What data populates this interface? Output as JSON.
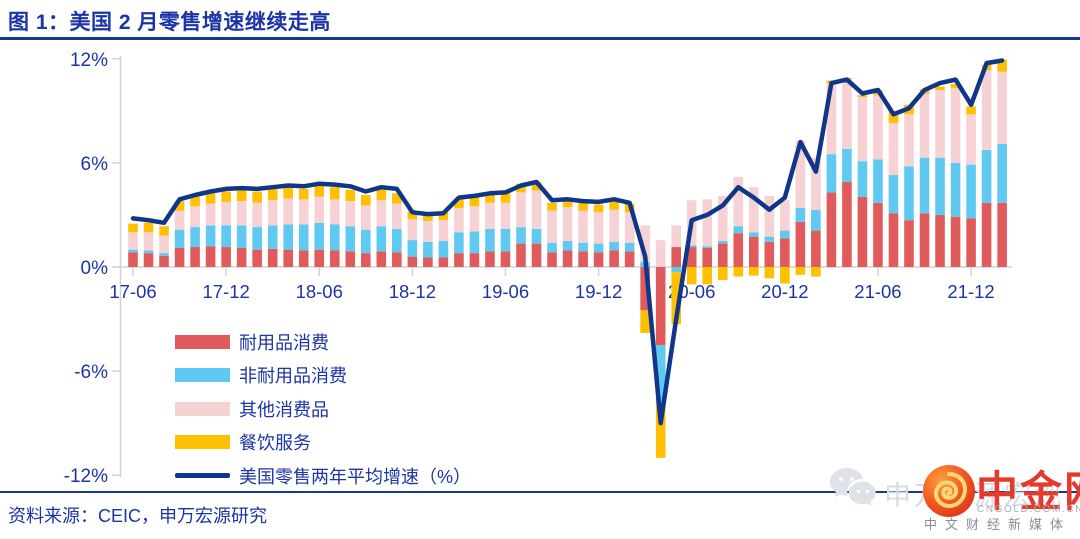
{
  "page": {
    "title": "图 1：美国 2 月零售增速继续走高",
    "source": "资料来源：CEIC，申万宏源研究"
  },
  "colors": {
    "text_blue": "#1b35a6",
    "rule_navy": "#16368f",
    "axis_gray": "#d3d3d3",
    "line_navy": "#0f3688",
    "durable_red": "#e05c5c",
    "nondurable_blue": "#5fc9f2",
    "other_pink": "#f6d2d4",
    "dining_yellow": "#ffc000"
  },
  "watermark": {
    "gray_text": "申万宏源宏观",
    "brand": "中金网",
    "domain": "CNGOLD.COM.CN",
    "tagline": "中文财经新媒体"
  },
  "chart_data": {
    "type": "bar",
    "subtype": "stacked-bar-with-line",
    "title": "美国 2 月零售增速继续走高",
    "xlabel": "",
    "ylabel": "",
    "ylim": [
      -12,
      12
    ],
    "grid": false,
    "legend_position": "inside-lower-left",
    "yticks": [
      "12%",
      "6%",
      "0%",
      "-6%",
      "-12%"
    ],
    "ytick_values": [
      12,
      6,
      0,
      -6,
      -12
    ],
    "xticks": [
      "17-06",
      "17-12",
      "18-06",
      "18-12",
      "19-06",
      "19-12",
      "20-06",
      "20-12",
      "21-06",
      "21-12"
    ],
    "categories": [
      "17-06",
      "17-07",
      "17-08",
      "17-09",
      "17-10",
      "17-11",
      "17-12",
      "18-01",
      "18-02",
      "18-03",
      "18-04",
      "18-05",
      "18-06",
      "18-07",
      "18-08",
      "18-09",
      "18-10",
      "18-11",
      "18-12",
      "19-01",
      "19-02",
      "19-03",
      "19-04",
      "19-05",
      "19-06",
      "19-07",
      "19-08",
      "19-09",
      "19-10",
      "19-11",
      "19-12",
      "20-01",
      "20-02",
      "20-03",
      "20-04",
      "20-05",
      "20-06",
      "20-07",
      "20-08",
      "20-09",
      "20-10",
      "20-11",
      "20-12",
      "21-01",
      "21-02",
      "21-03",
      "21-04",
      "21-05",
      "21-06",
      "21-07",
      "21-08",
      "21-09",
      "21-10",
      "21-11",
      "21-12",
      "22-01",
      "22-02"
    ],
    "series": [
      {
        "name": "耐用品消费",
        "kind": "bar",
        "color": "#e05c5c",
        "values": [
          0.85,
          0.8,
          0.65,
          1.1,
          1.15,
          1.2,
          1.15,
          1.1,
          1.0,
          1.05,
          1.0,
          0.95,
          1.0,
          0.95,
          0.9,
          0.8,
          0.9,
          0.85,
          0.6,
          0.55,
          0.55,
          0.8,
          0.8,
          0.9,
          0.9,
          1.35,
          1.35,
          0.85,
          0.95,
          0.9,
          0.85,
          0.95,
          0.9,
          -2.5,
          -4.5,
          1.15,
          1.15,
          1.1,
          1.35,
          1.95,
          1.75,
          1.45,
          1.65,
          2.6,
          2.1,
          4.3,
          4.9,
          4.05,
          3.7,
          3.1,
          2.7,
          3.1,
          3.0,
          2.9,
          2.8,
          3.7,
          3.7
        ]
      },
      {
        "name": "非耐用品消费",
        "kind": "bar",
        "color": "#5fc9f2",
        "values": [
          0.15,
          0.15,
          0.15,
          1.05,
          1.15,
          1.2,
          1.25,
          1.3,
          1.3,
          1.35,
          1.45,
          1.5,
          1.55,
          1.5,
          1.45,
          1.35,
          1.45,
          1.35,
          0.95,
          0.9,
          0.95,
          1.2,
          1.25,
          1.3,
          1.3,
          0.95,
          0.85,
          0.55,
          0.55,
          0.5,
          0.5,
          0.5,
          0.5,
          0.3,
          -3.4,
          -0.3,
          0.1,
          0.1,
          0.15,
          0.4,
          0.25,
          0.3,
          0.45,
          0.8,
          1.2,
          2.2,
          1.9,
          2.05,
          2.5,
          2.2,
          3.1,
          3.2,
          3.3,
          3.1,
          3.1,
          3.05,
          3.4
        ]
      },
      {
        "name": "其他消费品",
        "kind": "bar",
        "color": "#f6d2d4",
        "values": [
          1.0,
          1.05,
          1.0,
          1.1,
          1.2,
          1.25,
          1.35,
          1.4,
          1.4,
          1.45,
          1.5,
          1.45,
          1.5,
          1.45,
          1.45,
          1.4,
          1.5,
          1.45,
          1.2,
          1.2,
          1.2,
          1.4,
          1.45,
          1.5,
          1.5,
          2.0,
          2.2,
          1.85,
          1.95,
          1.85,
          1.8,
          1.85,
          1.75,
          2.1,
          1.55,
          1.25,
          2.6,
          2.7,
          2.6,
          2.85,
          2.6,
          2.35,
          1.75,
          3.9,
          3.0,
          4.1,
          4.0,
          3.7,
          3.7,
          3.0,
          3.0,
          3.7,
          3.9,
          4.3,
          2.9,
          4.6,
          4.15
        ]
      },
      {
        "name": "餐饮服务",
        "kind": "bar",
        "color": "#ffc000",
        "values": [
          0.5,
          0.55,
          0.55,
          0.55,
          0.55,
          0.6,
          0.6,
          0.65,
          0.65,
          0.65,
          0.65,
          0.6,
          0.65,
          0.7,
          0.65,
          0.6,
          0.65,
          0.6,
          0.45,
          0.45,
          0.45,
          0.55,
          0.55,
          0.6,
          0.6,
          0.5,
          0.5,
          0.45,
          0.45,
          0.45,
          0.45,
          0.5,
          0.5,
          -1.3,
          -3.1,
          -3.0,
          -1.0,
          -1.0,
          -0.75,
          -0.55,
          -0.5,
          -0.65,
          -0.95,
          -0.45,
          -0.55,
          0.15,
          0.1,
          0.1,
          0.3,
          0.7,
          0.55,
          0.25,
          0.2,
          0.25,
          0.45,
          0.3,
          0.7
        ]
      },
      {
        "name": "美国零售两年平均增速（%）",
        "kind": "line",
        "color": "#0f3688",
        "values": [
          2.8,
          2.7,
          2.55,
          3.9,
          4.15,
          4.35,
          4.5,
          4.55,
          4.5,
          4.6,
          4.7,
          4.65,
          4.8,
          4.75,
          4.65,
          4.35,
          4.6,
          4.5,
          3.15,
          3.05,
          3.1,
          4.0,
          4.1,
          4.25,
          4.3,
          4.7,
          4.9,
          3.85,
          3.9,
          3.8,
          3.75,
          3.9,
          3.7,
          0.6,
          -9.0,
          -3.0,
          2.7,
          3.0,
          3.55,
          4.6,
          4.0,
          3.3,
          4.0,
          7.2,
          5.5,
          10.6,
          10.8,
          10.0,
          10.2,
          8.8,
          9.15,
          10.2,
          10.6,
          10.8,
          9.35,
          11.75,
          11.9
        ]
      }
    ]
  }
}
